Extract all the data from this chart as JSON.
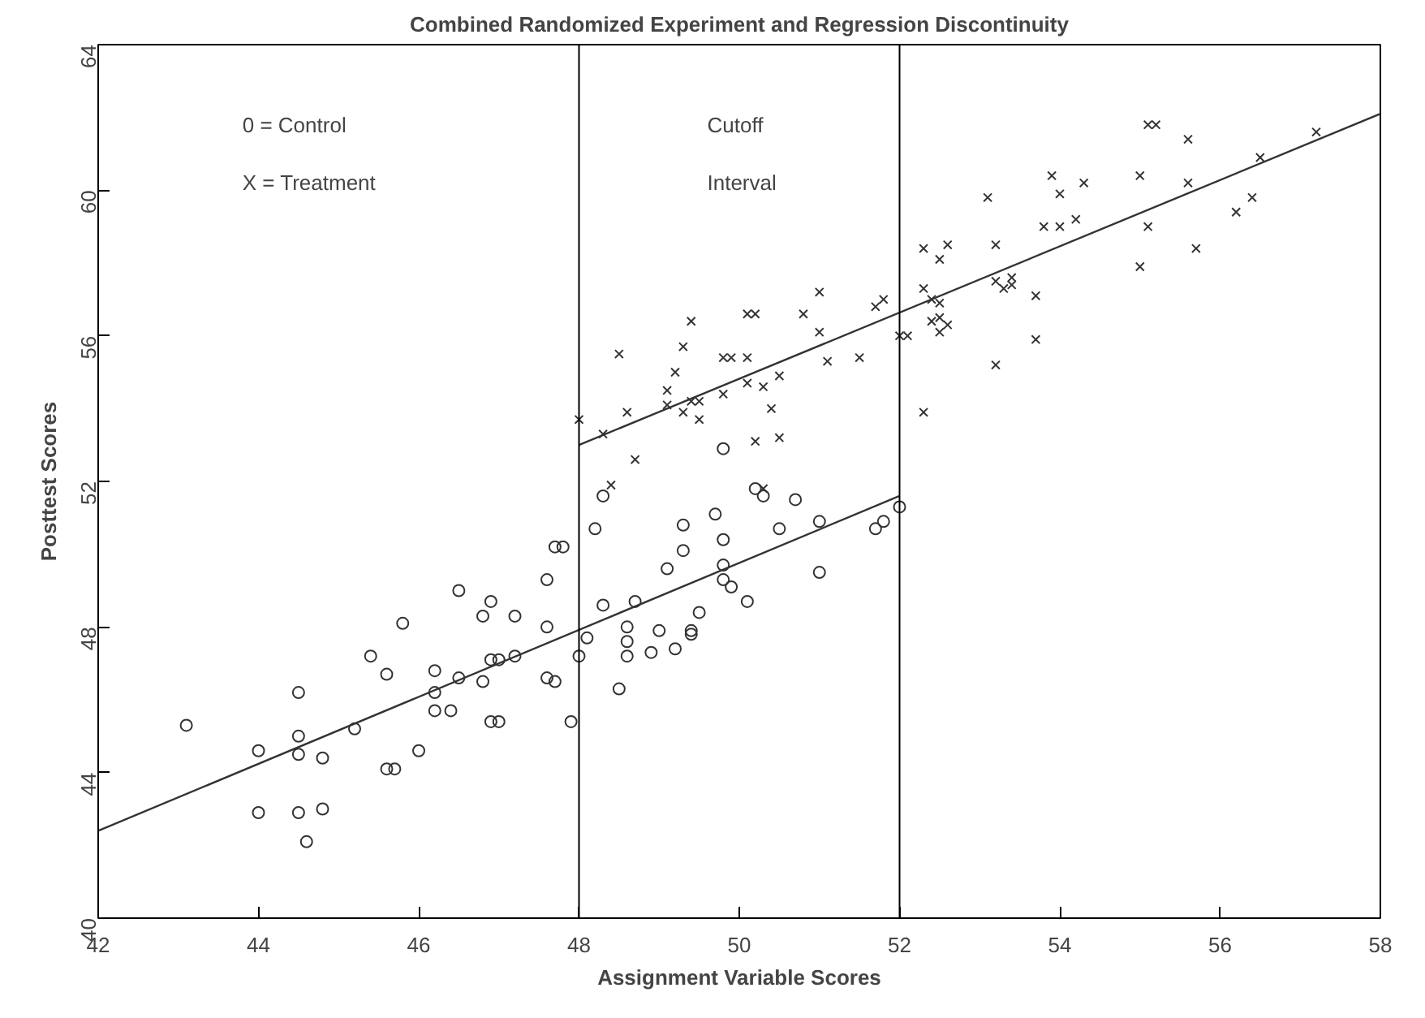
{
  "chart_data": {
    "type": "scatter",
    "title": "Combined Randomized Experiment and Regression Discontinuity",
    "xlabel": "Assignment Variable Scores",
    "ylabel": "Posttest Scores",
    "annotations": [
      "0 = Control",
      "X = Treatment",
      "Cutoff\nInterval"
    ],
    "xlim": [
      42,
      58
    ],
    "xticks": [
      42,
      44,
      46,
      48,
      50,
      52,
      54,
      56,
      58
    ],
    "ylim": [
      40,
      64
    ],
    "yticks": [
      40,
      44,
      48,
      52,
      56,
      60,
      64
    ],
    "grid": false,
    "ref_lines": [
      {
        "axis": "x",
        "value": 48,
        "color": "#000000"
      },
      {
        "axis": "x",
        "value": 52,
        "color": "#000000"
      }
    ],
    "series": [
      {
        "marker": "circle",
        "color": "#333333",
        "x": [
          43.1,
          44.0,
          44.0,
          44.5,
          44.5,
          44.5,
          44.5,
          44.6,
          44.8,
          44.8,
          45.2,
          45.4,
          45.6,
          45.6,
          45.7,
          45.8,
          46.0,
          46.2,
          46.2,
          46.2,
          46.4,
          46.5,
          46.5,
          46.8,
          46.8,
          46.9,
          46.9,
          47.0,
          46.9,
          47.0,
          47.2,
          47.2,
          47.6,
          47.6,
          47.6,
          47.7,
          47.7,
          47.8,
          47.9,
          48.0,
          48.1,
          49.8,
          48.3,
          48.2,
          49.7,
          49.3,
          49.8,
          49.3,
          49.1,
          49.8,
          49.8,
          49.9,
          50.1,
          49.5,
          50.2,
          50.3,
          50.7,
          50.5,
          51.0,
          51.0,
          51.7,
          51.8,
          52.0,
          48.3,
          48.7,
          48.6,
          48.6,
          48.6,
          49.0,
          48.9,
          49.2,
          49.4,
          49.4,
          48.5
        ],
        "values": [
          45.3,
          44.6,
          42.9,
          42.9,
          45.0,
          44.5,
          46.2,
          42.1,
          44.4,
          43.0,
          45.2,
          47.2,
          46.7,
          44.1,
          44.1,
          48.1,
          44.6,
          46.8,
          46.2,
          45.7,
          45.7,
          49.0,
          46.6,
          48.3,
          46.5,
          48.7,
          47.1,
          47.1,
          45.4,
          45.4,
          48.3,
          47.2,
          49.3,
          48.0,
          46.6,
          46.5,
          50.2,
          50.2,
          45.4,
          47.2,
          47.7,
          52.9,
          51.6,
          50.7,
          51.1,
          50.8,
          50.4,
          50.1,
          49.6,
          49.7,
          49.3,
          49.1,
          48.7,
          48.4,
          51.8,
          51.6,
          51.5,
          50.7,
          50.9,
          49.5,
          50.7,
          50.9,
          51.3,
          48.6,
          48.7,
          48.0,
          47.6,
          47.2,
          47.9,
          47.3,
          47.4,
          47.9,
          47.8,
          46.3
        ]
      },
      {
        "marker": "cross",
        "color": "#333333",
        "x": [
          48.0,
          48.3,
          48.6,
          48.7,
          48.4,
          50.3,
          48.5,
          49.4,
          49.3,
          49.2,
          49.1,
          49.1,
          49.3,
          49.4,
          49.5,
          49.5,
          49.8,
          49.8,
          49.9,
          50.1,
          50.1,
          50.2,
          50.1,
          50.3,
          50.5,
          50.4,
          50.2,
          50.5,
          50.8,
          51.0,
          51.0,
          51.1,
          51.5,
          51.7,
          51.8,
          52.0,
          52.1,
          52.3,
          52.3,
          52.5,
          52.6,
          52.3,
          52.5,
          52.4,
          52.4,
          52.5,
          52.6,
          52.5,
          53.1,
          53.2,
          53.2,
          53.3,
          53.4,
          53.4,
          53.2,
          53.7,
          53.7,
          53.8,
          53.9,
          54.0,
          54.0,
          54.2,
          54.3,
          55.0,
          55.1,
          55.2,
          55.1,
          55.0,
          55.6,
          55.6,
          55.7,
          56.2,
          56.4,
          56.5,
          57.2
        ],
        "values": [
          53.7,
          53.3,
          53.9,
          52.6,
          51.9,
          51.8,
          55.5,
          56.4,
          55.7,
          55.0,
          54.5,
          54.1,
          53.9,
          54.2,
          54.2,
          53.7,
          54.4,
          55.4,
          55.4,
          55.4,
          56.6,
          56.6,
          54.7,
          54.6,
          54.9,
          54.0,
          53.1,
          53.2,
          56.6,
          57.2,
          56.1,
          55.3,
          55.4,
          56.8,
          57.0,
          56.0,
          56.0,
          53.9,
          58.4,
          58.1,
          58.5,
          57.3,
          56.9,
          57.0,
          56.4,
          56.5,
          56.3,
          56.1,
          59.8,
          58.5,
          57.5,
          57.3,
          57.4,
          57.6,
          55.2,
          57.1,
          55.9,
          59.0,
          60.4,
          59.9,
          59.0,
          59.2,
          60.2,
          60.4,
          61.8,
          61.8,
          59.0,
          57.9,
          61.4,
          60.2,
          58.4,
          59.4,
          59.8,
          60.9,
          61.6
        ]
      },
      {
        "type": "line",
        "line_style": "solid",
        "color": "#333333",
        "x": [
          42,
          52
        ],
        "values": [
          42.4,
          51.6
        ]
      },
      {
        "type": "line",
        "line_style": "solid",
        "color": "#333333",
        "x": [
          48,
          58
        ],
        "values": [
          53.0,
          62.1
        ]
      }
    ]
  }
}
